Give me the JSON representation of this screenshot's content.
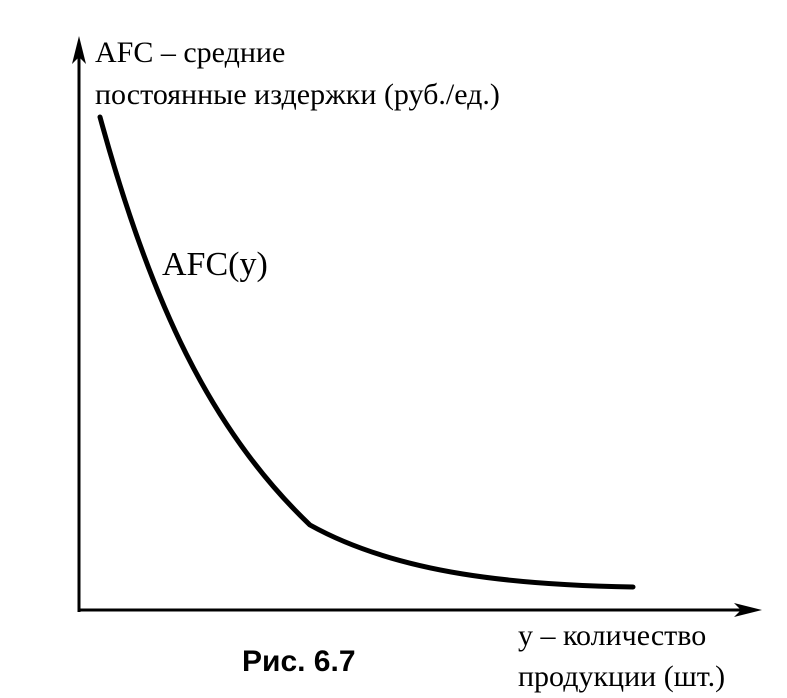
{
  "y_axis": {
    "title_lines": [
      "AFC – средние",
      "постоянные издержки (руб./ед.)"
    ]
  },
  "x_axis": {
    "title_lines": [
      "y – количество",
      "продукции (шт.)"
    ]
  },
  "curve": {
    "label": "AFC(y)",
    "shape": "decreasing hyperbola"
  },
  "caption": "Рис. 6.7",
  "colors": {
    "stroke": "#000000",
    "background": "#ffffff"
  }
}
